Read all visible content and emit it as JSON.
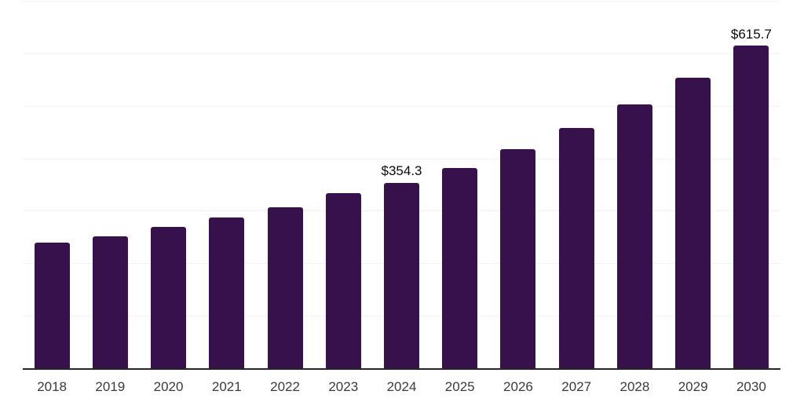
{
  "chart_data": {
    "type": "bar",
    "categories": [
      "2018",
      "2019",
      "2020",
      "2021",
      "2022",
      "2023",
      "2024",
      "2025",
      "2026",
      "2027",
      "2028",
      "2029",
      "2030"
    ],
    "values": [
      241.5,
      253.0,
      270.3,
      288.0,
      308.6,
      334.8,
      354.3,
      383.0,
      419.0,
      458.5,
      504.0,
      555.5,
      615.7
    ],
    "value_labels": {
      "2024": "$354.3",
      "2030": "$615.7"
    },
    "ylim": [
      0,
      700
    ],
    "grid_step": 100,
    "grid": true,
    "legend_position": "none",
    "colors": {
      "bar": "#36114C",
      "gridline": "#F3F3F5",
      "axis_line": "#262626",
      "tick_label": "#3A3A3A",
      "value_label": "#0A0A0A",
      "background": "#FFFFFF"
    }
  }
}
